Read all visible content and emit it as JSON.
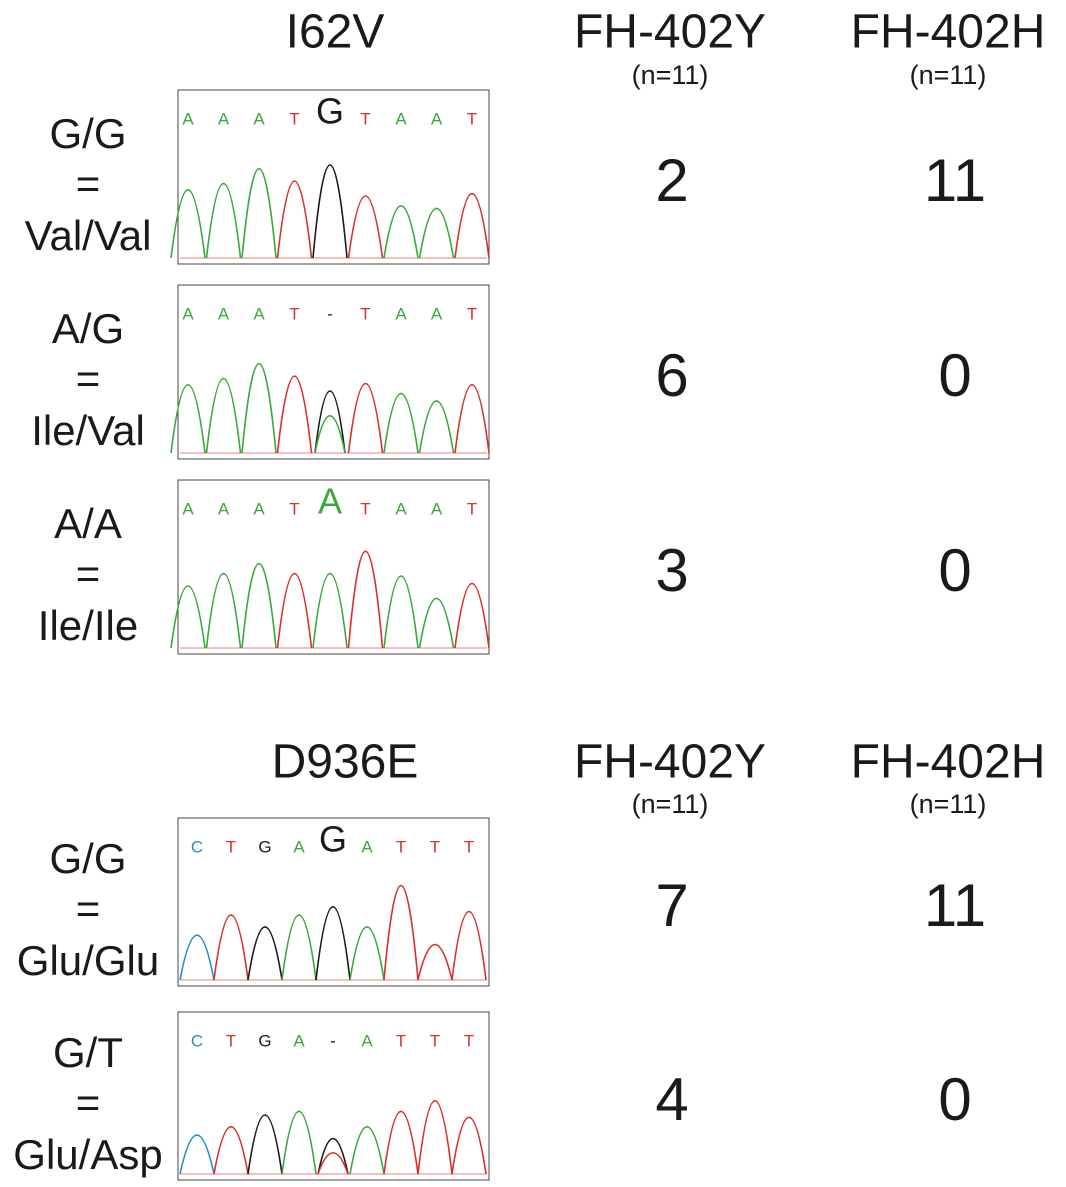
{
  "panels": [
    {
      "title": "I62V",
      "columns": [
        {
          "name": "FH-402Y",
          "n": "(n=11)"
        },
        {
          "name": "FH-402H",
          "n": "(n=11)"
        }
      ],
      "rows": [
        {
          "genotype": "G/G",
          "equals": "=",
          "residues": "Val/Val",
          "bases": [
            "A",
            "A",
            "A",
            "T",
            "G",
            "T",
            "A",
            "A",
            "T"
          ],
          "counts": [
            2,
            11
          ]
        },
        {
          "genotype": "A/G",
          "equals": "=",
          "residues": "Ile/Val",
          "bases": [
            "A",
            "A",
            "A",
            "T",
            "-",
            "T",
            "A",
            "A",
            "T"
          ],
          "counts": [
            6,
            0
          ]
        },
        {
          "genotype": "A/A",
          "equals": "=",
          "residues": "Ile/Ile",
          "bases": [
            "A",
            "A",
            "A",
            "T",
            "A",
            "T",
            "A",
            "A",
            "T"
          ],
          "counts": [
            3,
            0
          ]
        }
      ]
    },
    {
      "title": "D936E",
      "columns": [
        {
          "name": "FH-402Y",
          "n": "(n=11)"
        },
        {
          "name": "FH-402H",
          "n": "(n=11)"
        }
      ],
      "rows": [
        {
          "genotype": "G/G",
          "equals": "=",
          "residues": "Glu/Glu",
          "bases": [
            "C",
            "T",
            "G",
            "A",
            "G",
            "A",
            "T",
            "T",
            "T"
          ],
          "counts": [
            7,
            11
          ]
        },
        {
          "genotype": "G/T",
          "equals": "=",
          "residues": "Glu/Asp",
          "bases": [
            "C",
            "T",
            "G",
            "A",
            "-",
            "A",
            "T",
            "T",
            "T"
          ],
          "counts": [
            4,
            0
          ]
        }
      ]
    }
  ]
}
